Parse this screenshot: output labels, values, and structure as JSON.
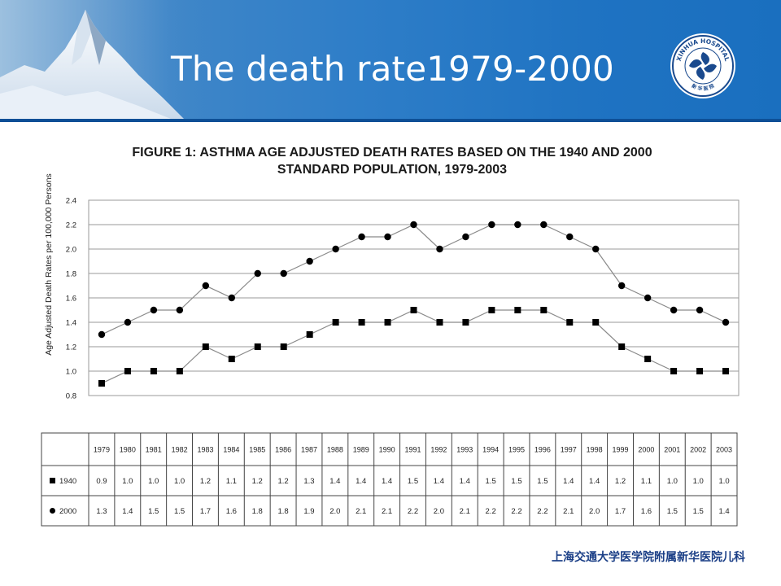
{
  "slide": {
    "title": "The death rate1979-2000",
    "footer": "上海交通大学医学院附属新华医院儿科",
    "logo_text_top": "XINHUA HOSPITAL",
    "logo_text_bottom": "新 华 医 院"
  },
  "colors": {
    "banner": "#2b7bc6",
    "title_text": "#ffffff",
    "footer_text": "#1a3e86",
    "series": "#000000"
  },
  "chart_data": {
    "type": "line",
    "title": "FIGURE 1: ASTHMA AGE ADJUSTED DEATH RATES BASED ON THE 1940 AND 2000",
    "subtitle": "STANDARD POPULATION, 1979-2003",
    "xlabel": "",
    "ylabel": "Age Adjusted Death Rates per 100,000 Persons",
    "ylim": [
      0.8,
      2.4
    ],
    "yticks": [
      "2.4",
      "2.2",
      "2.0",
      "1.8",
      "1.6",
      "1.4",
      "1.2",
      "1.0",
      "0.8"
    ],
    "x": [
      "1979",
      "1980",
      "1981",
      "1982",
      "1983",
      "1984",
      "1985",
      "1986",
      "1987",
      "1988",
      "1989",
      "1990",
      "1991",
      "1992",
      "1993",
      "1994",
      "1995",
      "1996",
      "1997",
      "1998",
      "1999",
      "2000",
      "2001",
      "2002",
      "2003"
    ],
    "grid": true,
    "series": [
      {
        "name": "1940",
        "marker": "square",
        "values": [
          0.9,
          1.0,
          1.0,
          1.0,
          1.2,
          1.1,
          1.2,
          1.2,
          1.3,
          1.4,
          1.4,
          1.4,
          1.5,
          1.4,
          1.4,
          1.5,
          1.5,
          1.5,
          1.4,
          1.4,
          1.2,
          1.1,
          1.0,
          1.0,
          1.0
        ]
      },
      {
        "name": "2000",
        "marker": "circle",
        "values": [
          1.3,
          1.4,
          1.5,
          1.5,
          1.7,
          1.6,
          1.8,
          1.8,
          1.9,
          2.0,
          2.1,
          2.1,
          2.2,
          2.0,
          2.1,
          2.2,
          2.2,
          2.2,
          2.1,
          2.0,
          1.7,
          1.6,
          1.5,
          1.5,
          1.4
        ]
      }
    ],
    "table": {
      "rows": [
        {
          "label": "1940",
          "marker": "square",
          "cells": [
            "0.9",
            "1.0",
            "1.0",
            "1.0",
            "1.2",
            "1.1",
            "1.2",
            "1.2",
            "1.3",
            "1.4",
            "1.4",
            "1.4",
            "1.5",
            "1.4",
            "1.4",
            "1.5",
            "1.5",
            "1.5",
            "1.4",
            "1.4",
            "1.2",
            "1.1",
            "1.0",
            "1.0",
            "1.0"
          ]
        },
        {
          "label": "2000",
          "marker": "circle",
          "cells": [
            "1.3",
            "1.4",
            "1.5",
            "1.5",
            "1.7",
            "1.6",
            "1.8",
            "1.8",
            "1.9",
            "2.0",
            "2.1",
            "2.1",
            "2.2",
            "2.0",
            "2.1",
            "2.2",
            "2.2",
            "2.2",
            "2.1",
            "2.0",
            "1.7",
            "1.6",
            "1.5",
            "1.5",
            "1.4"
          ]
        }
      ]
    }
  }
}
